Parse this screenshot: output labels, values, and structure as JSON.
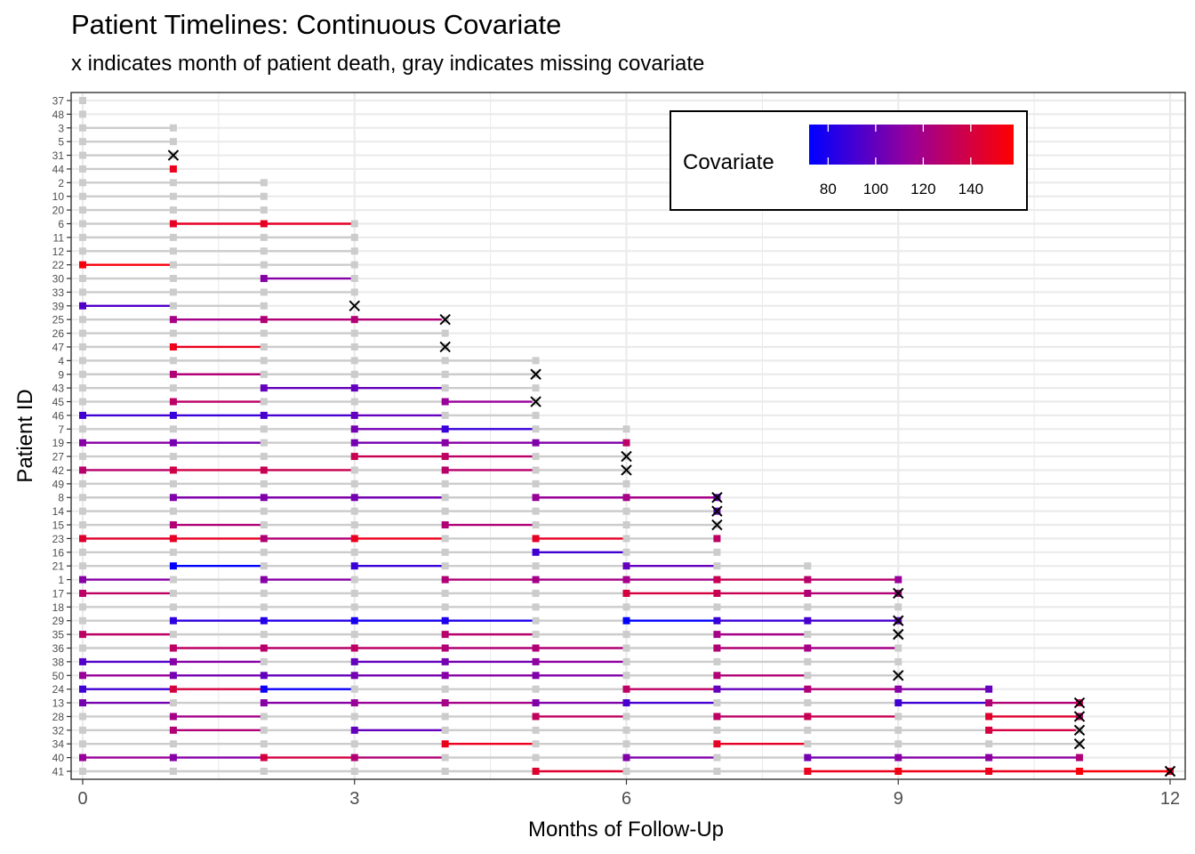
{
  "title": "Patient Timelines: Continuous Covariate",
  "subtitle": "x indicates month of patient death, gray indicates missing covariate",
  "colors": {
    "low": "#0000ff",
    "mid": "#990099",
    "high": "#ff0000",
    "missing": "#cccccc",
    "death": "#000000"
  },
  "chart_data": {
    "type": "timeline",
    "xlabel": "Months of Follow-Up",
    "ylabel": "Patient ID",
    "xlim": [
      0,
      12
    ],
    "xticks": [
      0,
      3,
      6,
      9,
      12
    ],
    "legend": {
      "title": "Covariate",
      "position": "top-right",
      "ticks": [
        80,
        100,
        120,
        140
      ],
      "range": [
        72,
        158
      ]
    },
    "patients": [
      {
        "id": "37",
        "values": [
          null
        ],
        "death": null
      },
      {
        "id": "48",
        "values": [
          null
        ],
        "death": null
      },
      {
        "id": "3",
        "values": [
          null,
          null
        ],
        "death": null
      },
      {
        "id": "5",
        "values": [
          null,
          null
        ],
        "death": null
      },
      {
        "id": "31",
        "values": [
          null,
          null
        ],
        "death": 1
      },
      {
        "id": "44",
        "values": [
          null,
          150
        ],
        "death": null
      },
      {
        "id": "2",
        "values": [
          null,
          null,
          null
        ],
        "death": null
      },
      {
        "id": "10",
        "values": [
          null,
          null,
          null
        ],
        "death": null
      },
      {
        "id": "20",
        "values": [
          null,
          null,
          null
        ],
        "death": null
      },
      {
        "id": "6",
        "values": [
          null,
          148,
          148,
          null
        ],
        "death": null
      },
      {
        "id": "11",
        "values": [
          null,
          null,
          null,
          null
        ],
        "death": null
      },
      {
        "id": "12",
        "values": [
          null,
          null,
          null,
          null
        ],
        "death": null
      },
      {
        "id": "22",
        "values": [
          155,
          null,
          null,
          null
        ],
        "death": null
      },
      {
        "id": "30",
        "values": [
          null,
          null,
          110,
          null
        ],
        "death": null
      },
      {
        "id": "33",
        "values": [
          null,
          null,
          null,
          null
        ],
        "death": null
      },
      {
        "id": "39",
        "values": [
          95,
          null,
          null
        ],
        "death": 3
      },
      {
        "id": "25",
        "values": [
          null,
          120,
          125,
          125,
          null
        ],
        "death": 4
      },
      {
        "id": "26",
        "values": [
          null,
          null,
          null,
          null,
          null
        ],
        "death": null
      },
      {
        "id": "47",
        "values": [
          null,
          150,
          null,
          null,
          null
        ],
        "death": 4
      },
      {
        "id": "4",
        "values": [
          null,
          null,
          null,
          null,
          null,
          null
        ],
        "death": null
      },
      {
        "id": "9",
        "values": [
          null,
          125,
          null,
          null,
          null,
          null
        ],
        "death": 5
      },
      {
        "id": "43",
        "values": [
          null,
          null,
          100,
          100,
          null,
          null
        ],
        "death": null
      },
      {
        "id": "45",
        "values": [
          null,
          130,
          null,
          null,
          115,
          null
        ],
        "death": 5
      },
      {
        "id": "46",
        "values": [
          90,
          88,
          92,
          100,
          null,
          null
        ],
        "death": null
      },
      {
        "id": "7",
        "values": [
          null,
          null,
          null,
          105,
          88,
          null,
          null
        ],
        "death": null
      },
      {
        "id": "19",
        "values": [
          110,
          105,
          null,
          105,
          110,
          108,
          130
        ],
        "death": null
      },
      {
        "id": "27",
        "values": [
          null,
          null,
          null,
          135,
          130,
          null,
          null
        ],
        "death": 6
      },
      {
        "id": "42",
        "values": [
          128,
          138,
          135,
          null,
          128,
          null,
          null
        ],
        "death": 6
      },
      {
        "id": "49",
        "values": [
          null,
          null,
          null,
          null,
          null,
          null,
          null
        ],
        "death": null
      },
      {
        "id": "8",
        "values": [
          null,
          108,
          108,
          105,
          null,
          115,
          120,
          100
        ],
        "death": 7
      },
      {
        "id": "14",
        "values": [
          null,
          null,
          null,
          null,
          null,
          null,
          null,
          100
        ],
        "death": 7
      },
      {
        "id": "15",
        "values": [
          null,
          125,
          null,
          null,
          125,
          null,
          null,
          null
        ],
        "death": 7
      },
      {
        "id": "23",
        "values": [
          145,
          148,
          125,
          150,
          null,
          148,
          null,
          130
        ],
        "death": null
      },
      {
        "id": "16",
        "values": [
          null,
          null,
          null,
          null,
          null,
          90,
          null,
          null
        ],
        "death": null
      },
      {
        "id": "21",
        "values": [
          null,
          72,
          null,
          88,
          null,
          null,
          100,
          null,
          null
        ],
        "death": null
      },
      {
        "id": "1",
        "values": [
          110,
          null,
          110,
          null,
          125,
          120,
          120,
          135,
          128,
          115
        ],
        "death": null
      },
      {
        "id": "17",
        "values": [
          130,
          null,
          null,
          null,
          null,
          null,
          140,
          135,
          125,
          120
        ],
        "death": 9
      },
      {
        "id": "18",
        "values": [
          null,
          null,
          null,
          null,
          null,
          null,
          null,
          null,
          null,
          null
        ],
        "death": null
      },
      {
        "id": "29",
        "values": [
          null,
          85,
          82,
          78,
          80,
          null,
          72,
          88,
          92,
          100
        ],
        "death": 9
      },
      {
        "id": "35",
        "values": [
          130,
          null,
          null,
          null,
          128,
          null,
          null,
          120,
          null,
          null
        ],
        "death": 9
      },
      {
        "id": "36",
        "values": [
          null,
          130,
          128,
          130,
          125,
          125,
          null,
          125,
          120,
          null
        ],
        "death": null
      },
      {
        "id": "38",
        "values": [
          95,
          110,
          null,
          100,
          105,
          112,
          null,
          null,
          null,
          null
        ],
        "death": null
      },
      {
        "id": "50",
        "values": [
          115,
          105,
          100,
          105,
          110,
          108,
          null,
          125,
          null,
          null
        ],
        "death": 9
      },
      {
        "id": "24",
        "values": [
          90,
          140,
          75,
          null,
          null,
          null,
          130,
          100,
          125,
          110,
          100
        ],
        "death": null
      },
      {
        "id": "13",
        "values": [
          105,
          null,
          110,
          115,
          120,
          108,
          92,
          null,
          null,
          90,
          125,
          135
        ],
        "death": 11
      },
      {
        "id": "28",
        "values": [
          null,
          120,
          null,
          null,
          null,
          132,
          null,
          130,
          135,
          null,
          145,
          130
        ],
        "death": 11
      },
      {
        "id": "32",
        "values": [
          null,
          125,
          null,
          100,
          null,
          null,
          null,
          null,
          null,
          null,
          140,
          null
        ],
        "death": 11
      },
      {
        "id": "34",
        "values": [
          null,
          null,
          null,
          null,
          150,
          null,
          null,
          148,
          null,
          null,
          null,
          null
        ],
        "death": 11
      },
      {
        "id": "40",
        "values": [
          115,
          110,
          140,
          125,
          null,
          null,
          108,
          null,
          105,
          110,
          112,
          125
        ],
        "death": null
      },
      {
        "id": "41",
        "values": [
          null,
          null,
          null,
          null,
          null,
          145,
          null,
          null,
          150,
          152,
          150,
          155,
          150
        ],
        "death": 12
      }
    ]
  }
}
